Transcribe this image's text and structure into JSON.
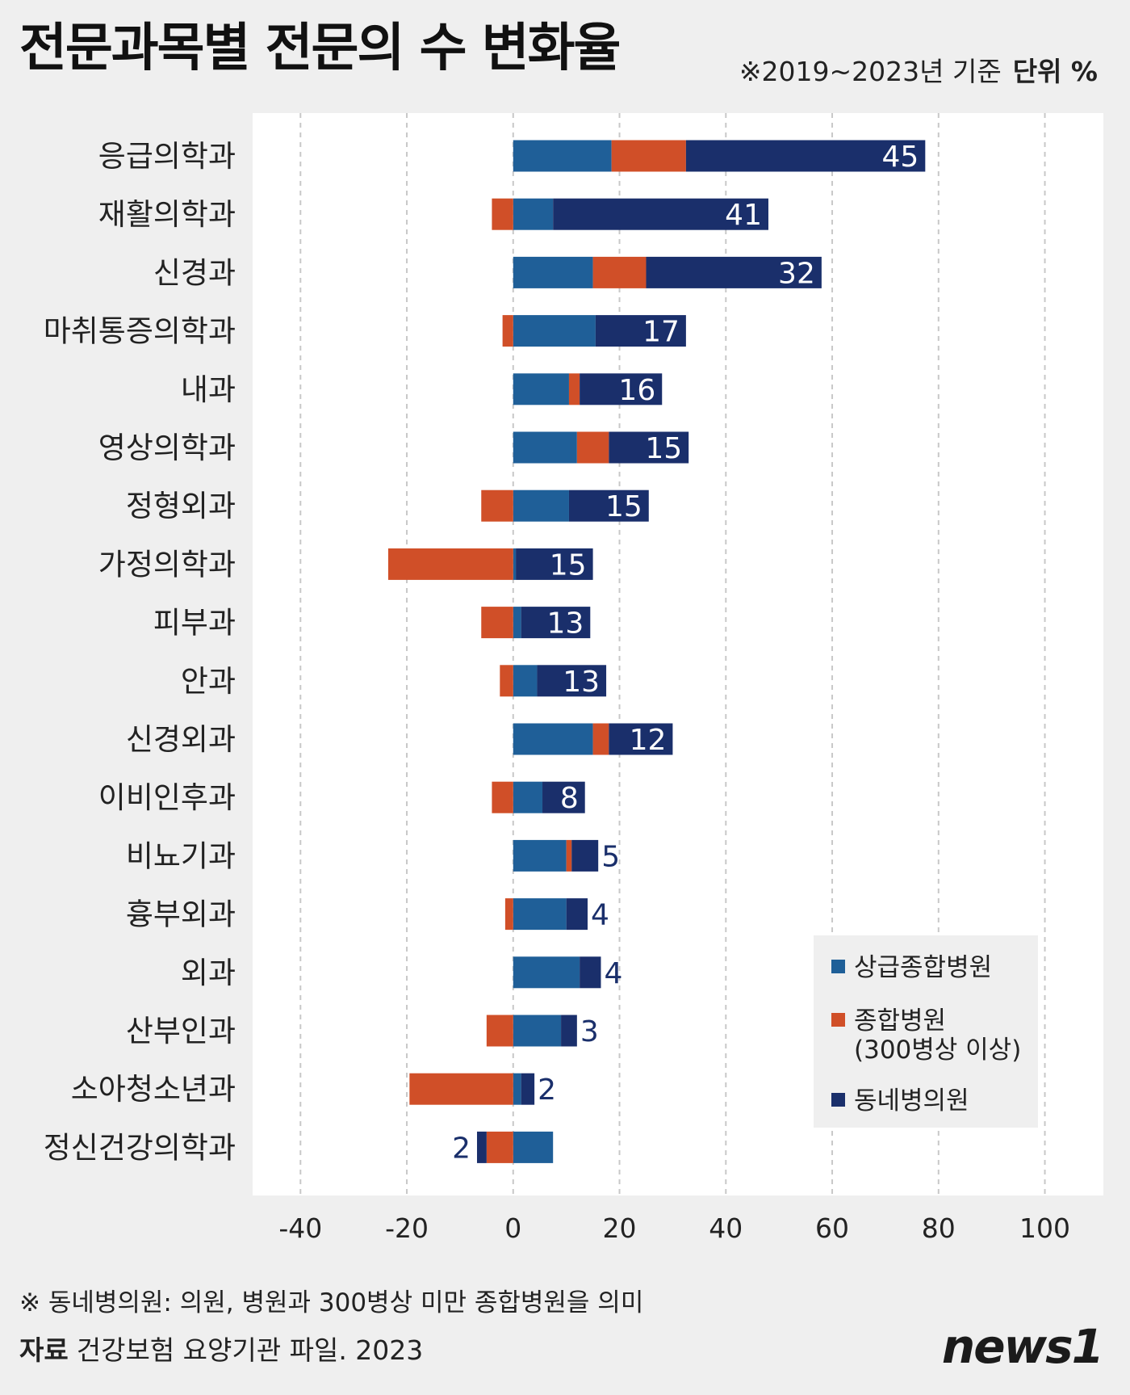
{
  "title": "전문과목별 전문의 수 변화율",
  "note": "※2019~2023년 기준",
  "unit": "단위 %",
  "footnote": "※ 동네병의원: 의원, 병원과 300병상 미만 종합병원을 의미",
  "source_label": "자료",
  "source": "건강보험 요양기관 파일. 2023",
  "logo": "news1",
  "colors": {
    "tertiary": "#1f5f98",
    "general": "#d04f28",
    "clinic": "#1a2f6b",
    "bg": "#efefef",
    "plot_bg": "#ffffff"
  },
  "chart_data": {
    "type": "bar",
    "orientation": "horizontal",
    "stacked": true,
    "categories": [
      "응급의학과",
      "재활의학과",
      "신경과",
      "마취통증의학과",
      "내과",
      "영상의학과",
      "정형외과",
      "가정의학과",
      "피부과",
      "안과",
      "신경외과",
      "이비인후과",
      "비뇨기과",
      "흉부외과",
      "외과",
      "산부인과",
      "소아청소년과",
      "정신건강의학과"
    ],
    "series": [
      {
        "name": "상급종합병원",
        "color": "#1f5f98",
        "values": [
          18.5,
          7.5,
          15,
          15.5,
          10.5,
          12,
          10.5,
          0.5,
          1.5,
          4.5,
          15,
          5.5,
          10,
          10,
          12.5,
          9,
          1.5,
          7.5
        ]
      },
      {
        "name": "종합병원 (300병상 이상)",
        "color": "#d04f28",
        "values": [
          14,
          -4,
          10,
          -2,
          2,
          6,
          -6,
          -23.5,
          -6,
          -2.5,
          3,
          -4,
          1,
          -1.5,
          0,
          -5,
          -19.5,
          -5
        ]
      },
      {
        "name": "동네병의원",
        "color": "#1a2f6b",
        "values": [
          45,
          41,
          32,
          17,
          16,
          15,
          15,
          15,
          13,
          13,
          12,
          8,
          5,
          4,
          4,
          3,
          2,
          2
        ]
      }
    ],
    "value_labels": [
      "45",
      "41",
      "32",
      "17",
      "16",
      "15",
      "15",
      "15",
      "13",
      "13",
      "12",
      "8",
      "5",
      "4",
      "4",
      "3",
      "2",
      "2"
    ],
    "xticks": [
      "-40",
      "-20",
      "0",
      "20",
      "40",
      "60",
      "80",
      "100"
    ],
    "xlim": [
      -49,
      111
    ],
    "grid": "vertical dashed",
    "legend_position": "bottom-right",
    "legend": [
      "상급종합병원",
      "종합병원",
      "(300병상 이상)",
      "동네병의원"
    ]
  }
}
